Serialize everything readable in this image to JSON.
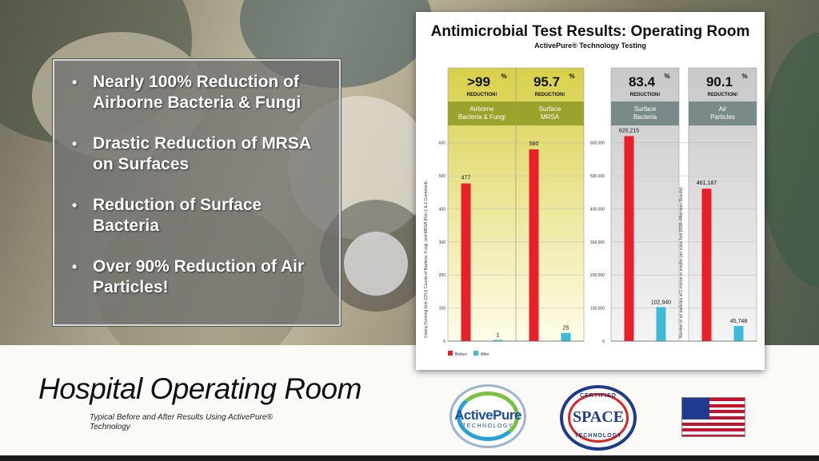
{
  "bullets": [
    "Nearly 100% Reduction of Airborne Bacteria & Fungi",
    "Drastic Reduction of MRSA on Surfaces",
    "Reduction of Surface Bacteria",
    "Over 90% Reduction of Air Particles!"
  ],
  "footer": {
    "title": "Hospital Operating Room",
    "subtitle": "Typical Before and After Results Using ActivePure® Technology"
  },
  "logos": {
    "activepure": "ActivePure",
    "activepure_sub": "TECHNOLOGY",
    "space_certified": "CERTIFIED",
    "space_name": "SPACE",
    "space_tech": "TECHNOLOGY"
  },
  "colors": {
    "before": "#e8202a",
    "after": "#3fb9d8",
    "header_green": "#8a9a2a",
    "panel_gray": "#8a8a8a"
  },
  "chart_data": {
    "type": "bar",
    "title": "Antimicrobial Test Results: Operating Room",
    "subtitle": "ActivePure® Technology Testing",
    "legend": [
      "Before",
      "After"
    ],
    "legend_placement": "bottom-left",
    "groups": [
      {
        "reduction": ">99",
        "reduction_label": "REDUCTION!",
        "category": "Airborne Bacteria & Fungi",
        "before": 477,
        "after": 1,
        "axis": "left"
      },
      {
        "reduction": "95.7",
        "reduction_label": "REDUCTION!",
        "category": "Surface MRSA",
        "before": 580,
        "after": 25,
        "axis": "left"
      },
      {
        "reduction": "83.4",
        "reduction_label": "REDUCTION!",
        "category": "Surface Bacteria",
        "before": 620215,
        "after": 102940,
        "axis": "mid"
      },
      {
        "reduction": "90.1",
        "reduction_label": "REDUCTION!",
        "category": "Air Particles",
        "before": 461187,
        "after": 45748,
        "axis": "mid"
      }
    ],
    "axes": {
      "left": {
        "label": "Colony Forming Unit (CFU) Counts of Bacteria, Fungi, and MRSA",
        "note": "(Rxn 1 & 2 Combined)",
        "ticks": [
          "0",
          "100",
          "200",
          "300",
          "400",
          "500",
          "600"
        ],
        "ylim": [
          0,
          650
        ]
      },
      "mid": {
        "ticks": [
          "0",
          "100,000",
          "200,000",
          "300,000",
          "400,000",
          "500,000",
          "600,000"
        ],
        "ylim": [
          0,
          650000
        ]
      },
      "right": {
        "label": "Number of air particles at 1 micron or smaller per cubic foot",
        "note": "(NSB+Afternoon Results)"
      }
    },
    "value_labels": [
      "477",
      "1",
      "580",
      "25",
      "620,215",
      "102,940",
      "461,187",
      "45,748"
    ]
  }
}
